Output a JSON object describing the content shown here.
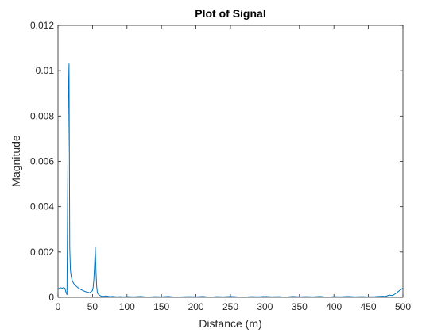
{
  "chart_data": {
    "type": "line",
    "title": "Plot of Signal",
    "xlabel": "Distance (m)",
    "ylabel": "Magnitude",
    "xlim": [
      0,
      500
    ],
    "ylim": [
      0,
      0.012
    ],
    "grid": false,
    "legend": "none",
    "xticks": [
      0,
      50,
      100,
      150,
      200,
      250,
      300,
      350,
      400,
      450,
      500
    ],
    "xtick_labels": [
      "0",
      "50",
      "100",
      "150",
      "200",
      "250",
      "300",
      "350",
      "400",
      "450",
      "500"
    ],
    "yticks": [
      0,
      0.002,
      0.004,
      0.006,
      0.008,
      0.01,
      0.012
    ],
    "ytick_labels": [
      "0",
      "0.002",
      "0.004",
      "0.006",
      "0.008",
      "0.01",
      "0.012"
    ],
    "series": [
      {
        "color": "#0072BD",
        "x": [
          0,
          2,
          4,
          6,
          8,
          10,
          11,
          12,
          13,
          14,
          15,
          16,
          17,
          18,
          19,
          20,
          22,
          24,
          26,
          28,
          30,
          33,
          36,
          40,
          44,
          46,
          48,
          50,
          51,
          52,
          53,
          54,
          55,
          56,
          57,
          58,
          60,
          62,
          65,
          70,
          75,
          80,
          85,
          90,
          95,
          100,
          110,
          120,
          130,
          140,
          150,
          160,
          170,
          180,
          190,
          200,
          210,
          220,
          230,
          240,
          250,
          260,
          270,
          280,
          290,
          300,
          310,
          320,
          330,
          340,
          350,
          360,
          370,
          380,
          390,
          400,
          410,
          420,
          430,
          440,
          450,
          460,
          470,
          475,
          480,
          485,
          490,
          495,
          500
        ],
        "y": [
          0.00035,
          0.0004,
          0.00042,
          0.0004,
          0.00043,
          0.0004,
          0.00028,
          0.00018,
          0.00012,
          0.0045,
          0.0087,
          0.0103,
          0.0022,
          0.0012,
          0.00095,
          0.0008,
          0.00065,
          0.00055,
          0.0005,
          0.00045,
          0.0004,
          0.00035,
          0.0003,
          0.00025,
          0.00022,
          0.0002,
          0.00025,
          0.0003,
          0.00045,
          0.0008,
          0.0014,
          0.0022,
          0.0012,
          0.0005,
          0.00022,
          0.00015,
          0.0001,
          6e-05,
          4e-05,
          6e-05,
          3e-05,
          4e-05,
          2e-05,
          3e-05,
          2e-05,
          3e-05,
          2e-05,
          4e-05,
          1e-05,
          3e-05,
          2e-05,
          4e-05,
          1e-05,
          2e-05,
          3e-05,
          2e-05,
          4e-05,
          1e-05,
          3e-05,
          2e-05,
          4e-05,
          2e-05,
          1e-05,
          3e-05,
          2e-05,
          4e-05,
          2e-05,
          3e-05,
          1e-05,
          4e-05,
          2e-05,
          3e-05,
          2e-05,
          4e-05,
          1e-05,
          3e-05,
          2e-05,
          4e-05,
          2e-05,
          3e-05,
          2e-05,
          3e-05,
          5e-05,
          4e-05,
          0.0001,
          8e-05,
          0.00018,
          0.0003,
          0.0004
        ]
      }
    ]
  }
}
